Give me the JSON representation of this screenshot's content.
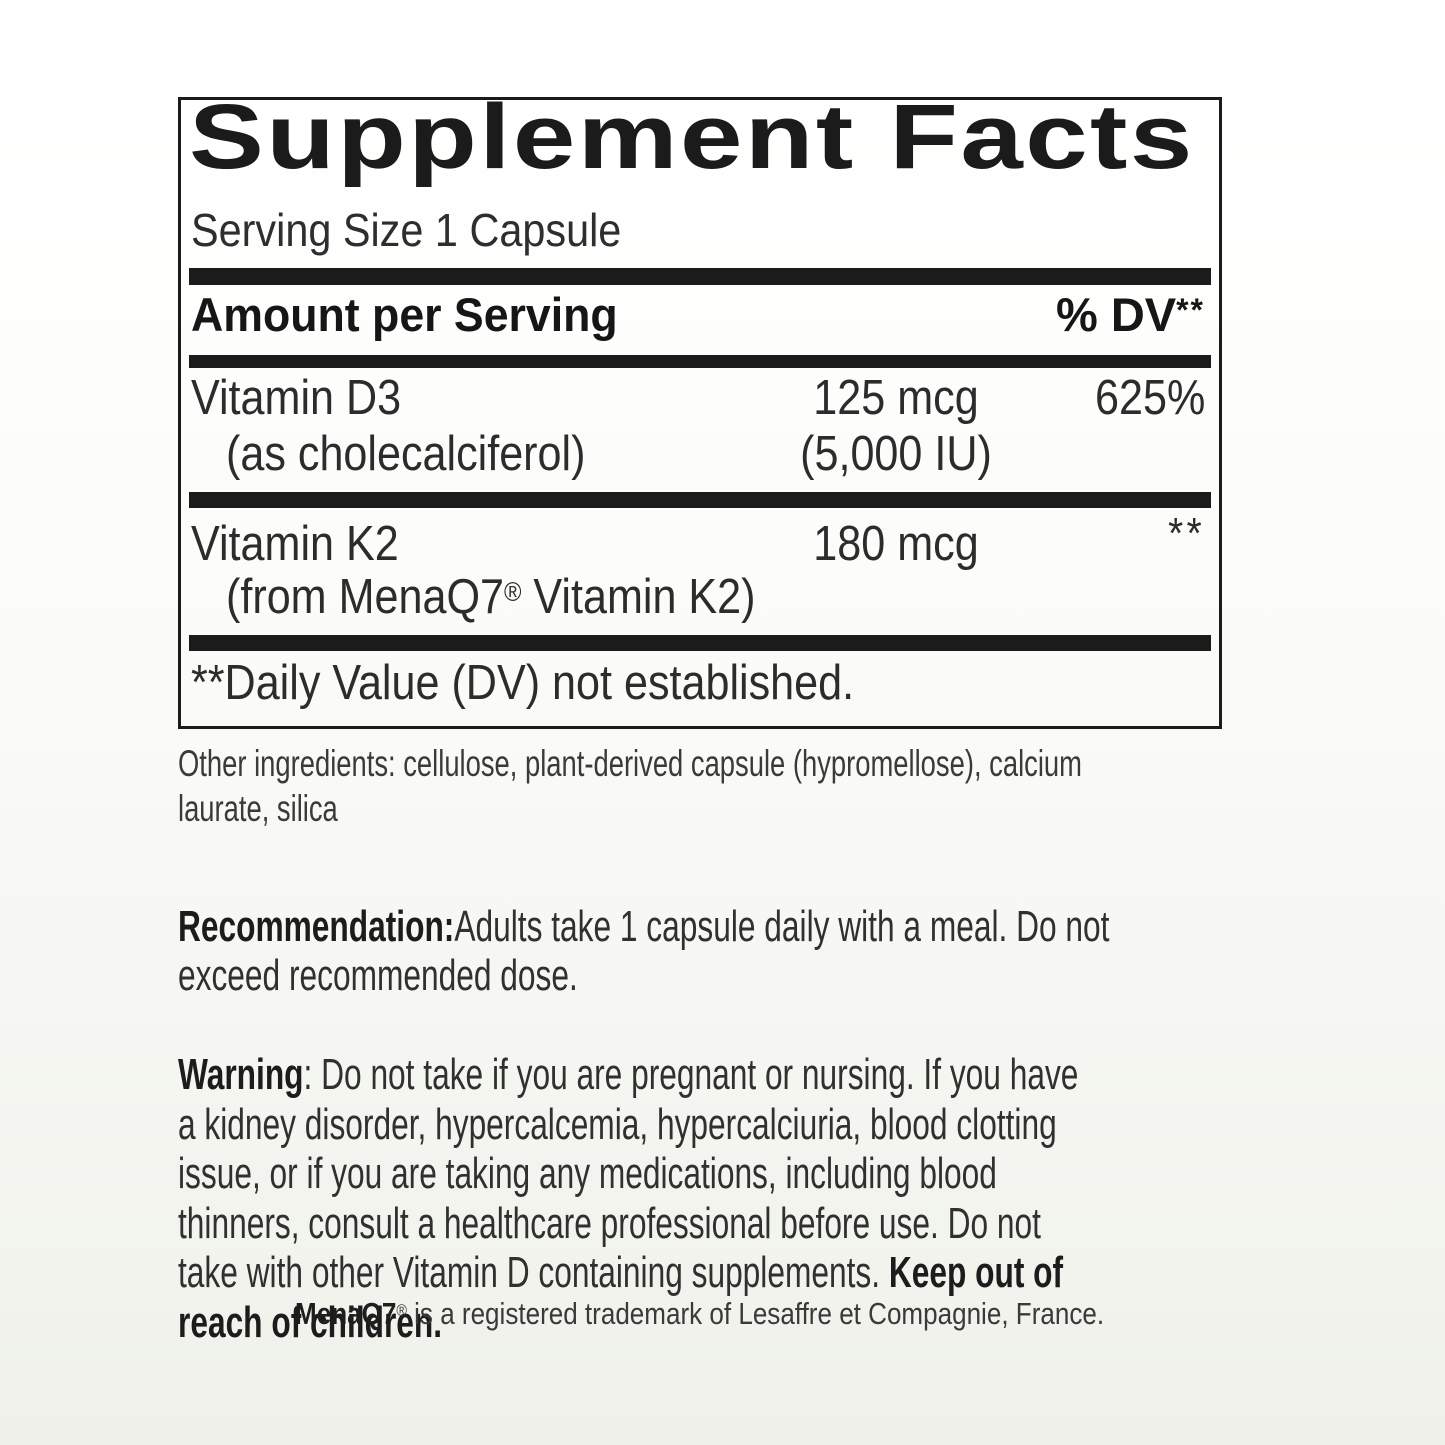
{
  "label": {
    "title": "Supplement Facts",
    "serving_size": "Serving Size 1 Capsule",
    "header": {
      "amount": "Amount per Serving",
      "dv": "% DV",
      "dv_sup": "**"
    },
    "rows": [
      {
        "name": "Vitamin D3",
        "name_detail": "(as cholecalciferol)",
        "amount": "125 mcg",
        "amount_detail": "(5,000 IU)",
        "dv": "625%",
        "dv_sup": ""
      },
      {
        "name": "Vitamin K2",
        "name_detail_pre": "(from MenaQ7",
        "name_detail_sup": "®",
        "name_detail_post": " Vitamin K2)",
        "amount": "180 mcg",
        "amount_detail": "",
        "dv": "",
        "dv_sup": "**"
      }
    ],
    "footnote": "**Daily Value (DV) not established."
  },
  "other_ingredients": "Other ingredients: cellulose, plant-derived capsule (hypromellose), calcium\nlaurate, silica",
  "recommendation": {
    "label": "Recommendation:",
    "text": "Adults take 1 capsule daily with a meal. Do not\nexceed recommended dose."
  },
  "warning": {
    "label": "Warning",
    "text": ": Do not take if you are pregnant or nursing. If you have\na kidney disorder, hypercalcemia, hypercalciuria, blood clotting\nissue, or if you are taking any medications, including blood\nthinners, consult a healthcare professional before use. Do not\ntake with other Vitamin D containing supplements. ",
    "bold_tail": "Keep out of\nreach of children."
  },
  "trademark": {
    "brand": "MenaQ7",
    "brand_sup": "®",
    "text": " is a registered trademark of Lesaffre et Compagnie, France."
  },
  "colors": {
    "ink": "#1b1b1b",
    "background_top": "#ffffff",
    "background_bottom": "#eff1ea"
  }
}
